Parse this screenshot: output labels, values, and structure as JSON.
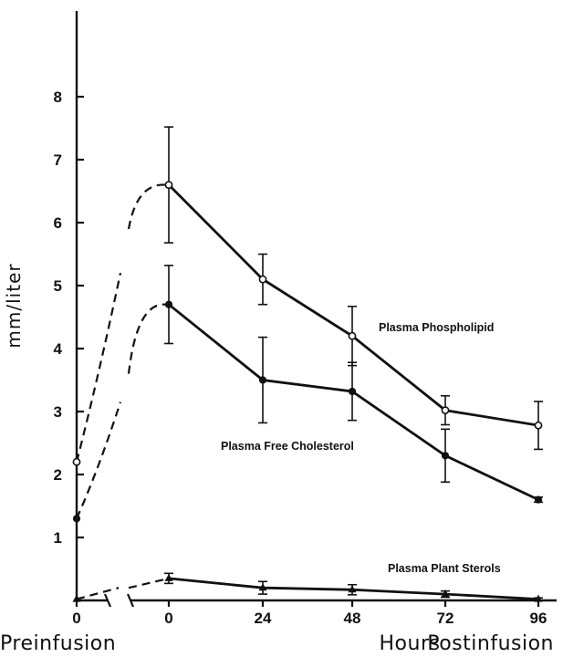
{
  "chart_data": {
    "type": "line",
    "ylabel": "mm/liter",
    "ylim": [
      0,
      9
    ],
    "yticks": [
      "1",
      "2",
      "3",
      "4",
      "5",
      "6",
      "7",
      "8"
    ],
    "x_groups": {
      "left": "Preinfusion",
      "middle": "Hours",
      "right": "Postinfusion"
    },
    "x_ticks": [
      "0",
      "0",
      "24",
      "48",
      "72",
      "96"
    ],
    "series": [
      {
        "name": "Plasma Phospholipid",
        "marker": "open-circle",
        "preinfusion": 2.2,
        "dashed_rise": [
          2.2,
          5.2,
          5.9,
          6.6
        ],
        "x": [
          0,
          24,
          48,
          72,
          96
        ],
        "values": [
          6.6,
          5.1,
          4.2,
          3.02,
          2.78
        ],
        "error": [
          0.92,
          0.4,
          0.47,
          0.23,
          0.38
        ]
      },
      {
        "name": "Plasma Free Cholesterol",
        "marker": "filled-circle",
        "preinfusion": 1.3,
        "dashed_rise": [
          1.3,
          3.15,
          3.6,
          4.7
        ],
        "x": [
          0,
          24,
          48,
          72,
          96
        ],
        "values": [
          4.7,
          3.5,
          3.32,
          2.3,
          1.6
        ],
        "error": [
          0.62,
          0.68,
          0.46,
          0.42,
          0.04
        ]
      },
      {
        "name": "Plasma Plant Sterols",
        "marker": "filled-triangle",
        "preinfusion": 0.02,
        "dashed_rise": [
          0.02,
          0.2,
          0.35
        ],
        "x": [
          0,
          24,
          48,
          72,
          96
        ],
        "values": [
          0.35,
          0.2,
          0.17,
          0.1,
          0.02
        ],
        "error": [
          0.08,
          0.1,
          0.08,
          0.05,
          0.02
        ]
      }
    ]
  }
}
